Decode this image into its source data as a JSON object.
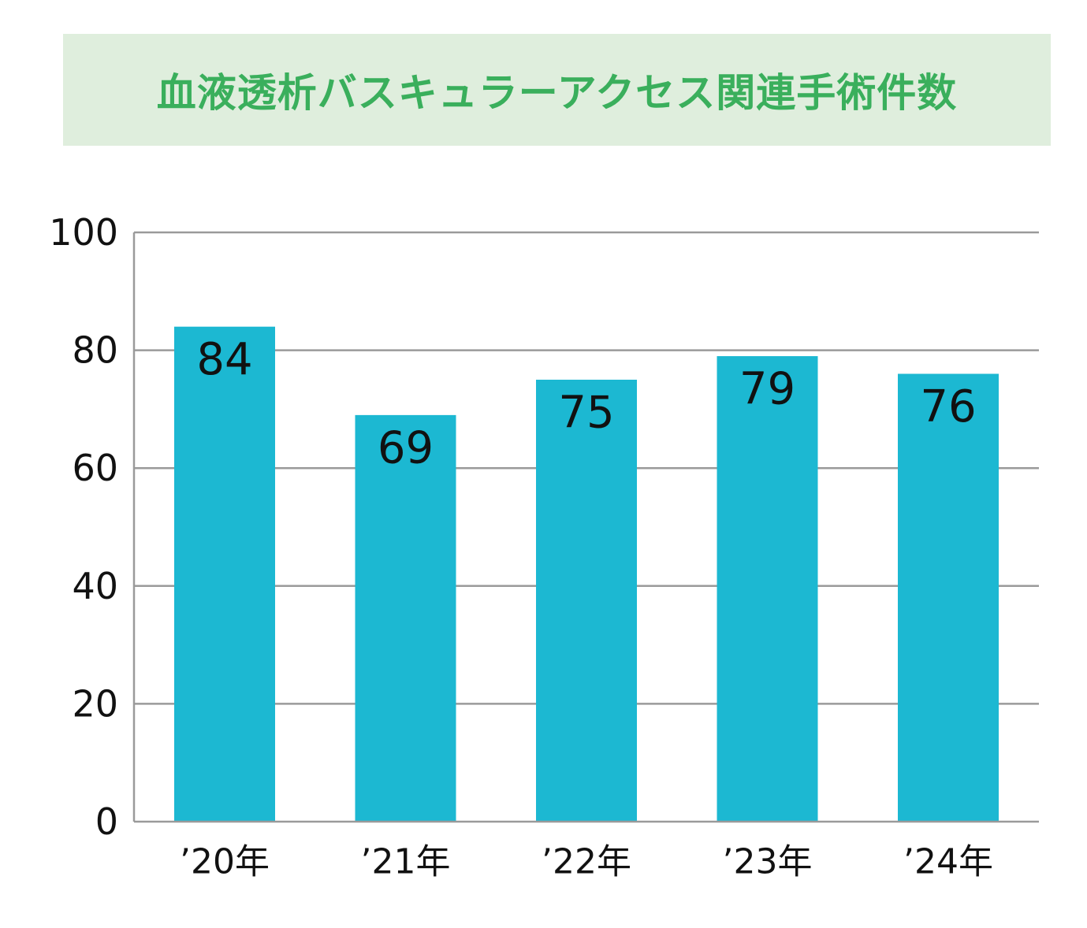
{
  "title": "血液透析バスキュラーアクセス関連手術件数",
  "colors": {
    "title_band": "#dfeedd",
    "title_text": "#3aaf5c",
    "bar": "#1cb8d2",
    "grid": "#9a9a9a",
    "text": "#111111"
  },
  "chart_data": {
    "type": "bar",
    "title": "血液透析バスキュラーアクセス関連手術件数",
    "categories": [
      "’20年",
      "’21年",
      "’22年",
      "’23年",
      "’24年"
    ],
    "values": [
      84,
      69,
      75,
      79,
      76
    ],
    "data_labels": [
      "84",
      "69",
      "75",
      "79",
      "76"
    ],
    "ylim": [
      0,
      100
    ],
    "yticks": [
      0,
      20,
      40,
      60,
      80,
      100
    ],
    "ytick_labels": [
      "0",
      "20",
      "40",
      "60",
      "80",
      "100"
    ],
    "xlabel": "",
    "ylabel": "",
    "grid": true,
    "legend": "none"
  }
}
